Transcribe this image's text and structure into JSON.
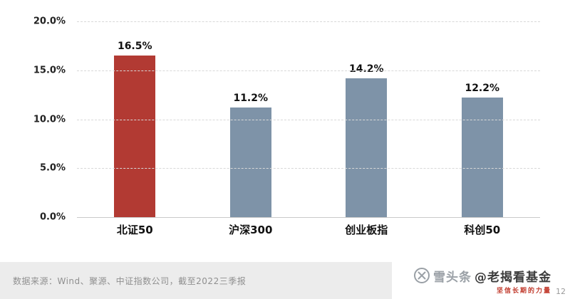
{
  "chart_data": {
    "type": "bar",
    "title": "",
    "categories": [
      "北证50",
      "沪深300",
      "创业板指",
      "科创50"
    ],
    "values": [
      16.5,
      11.2,
      14.2,
      12.2
    ],
    "data_labels": [
      "16.5%",
      "11.2%",
      "14.2%",
      "12.2%"
    ],
    "highlight_index": 0,
    "colors": {
      "highlight": "#b23a33",
      "default": "#7e93a8"
    },
    "y_axis": {
      "min": 0,
      "max": 20,
      "tick_values": [
        0,
        5,
        10,
        15,
        20
      ],
      "tick_labels": [
        "0.0%",
        "5.0%",
        "10.0%",
        "15.0%",
        "20.0%"
      ]
    },
    "grid": "dashed horizontal",
    "legend": "none"
  },
  "footer": {
    "source": "数据来源：Wind、聚源、中证指数公司，截至2022三季报",
    "page_number": "12"
  },
  "watermark": {
    "brand": "雪头条",
    "account": "@老揭看基金",
    "slogan": "坚信长期的力量"
  }
}
